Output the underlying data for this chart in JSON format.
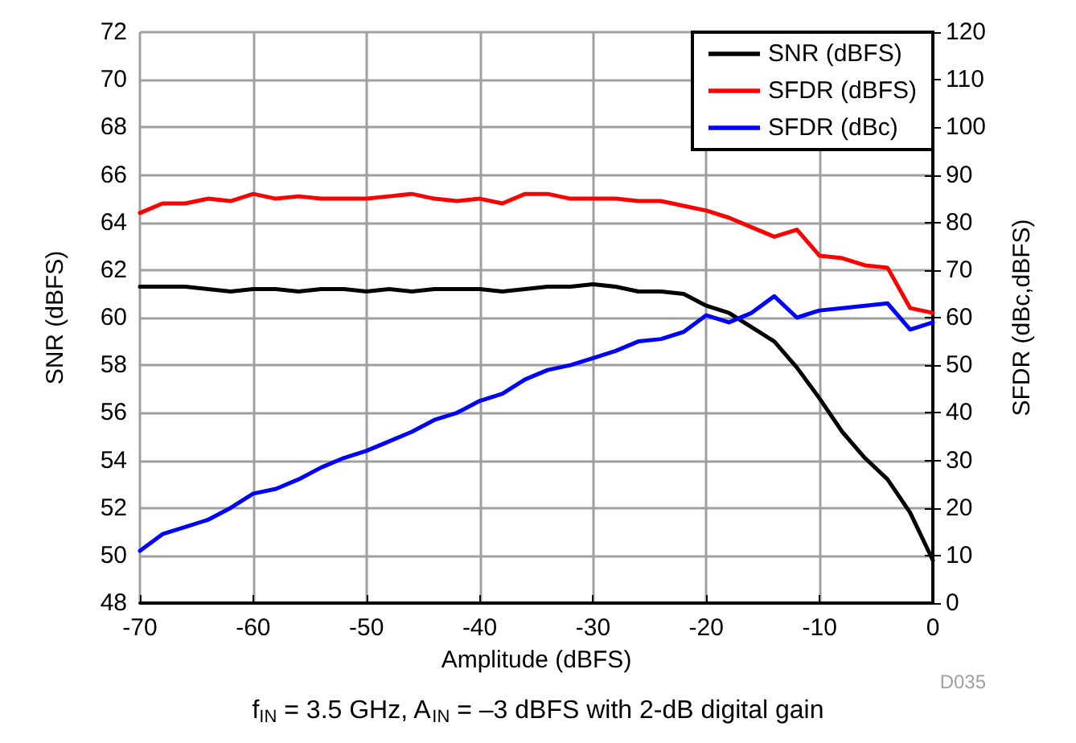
{
  "chart_data": {
    "type": "line",
    "xlabel": "Amplitude (dBFS)",
    "ylabel": "SNR (dBFS)",
    "y2label": "SFDR (dBc,dBFS)",
    "x": [
      -70,
      -68,
      -66,
      -64,
      -62,
      -60,
      -58,
      -56,
      -54,
      -52,
      -50,
      -48,
      -46,
      -44,
      -42,
      -40,
      -38,
      -36,
      -34,
      -32,
      -30,
      -28,
      -26,
      -24,
      -22,
      -20,
      -18,
      -16,
      -14,
      -12,
      -10,
      -8,
      -6,
      -4,
      -2,
      0
    ],
    "series": [
      {
        "name": "SNR (dBFS)",
        "color": "#000000",
        "values": [
          61.3,
          61.3,
          61.3,
          61.2,
          61.1,
          61.2,
          61.2,
          61.1,
          61.2,
          61.2,
          61.1,
          61.2,
          61.1,
          61.2,
          61.2,
          61.2,
          61.1,
          61.2,
          61.3,
          61.3,
          61.4,
          61.3,
          61.1,
          61.1,
          61.0,
          60.5,
          60.2,
          59.6,
          59.0,
          57.9,
          56.6,
          55.2,
          54.1,
          53.2,
          51.8,
          49.8
        ]
      },
      {
        "name": "SFDR (dBFS)",
        "color": "#ff0000",
        "axis": "y2",
        "values": [
          82,
          84,
          84,
          85,
          84.5,
          86,
          85,
          85.5,
          85,
          85,
          85,
          85.5,
          86,
          85,
          84.5,
          85,
          84,
          86,
          86,
          85,
          85,
          85,
          84.5,
          84.5,
          83.5,
          82.5,
          81,
          79,
          77,
          78.5,
          73,
          72.5,
          71,
          70.5,
          62,
          61
        ]
      },
      {
        "name": "SFDR (dBc)",
        "color": "#0000ff",
        "axis": "y2",
        "values": [
          11,
          14.5,
          16,
          17.5,
          20,
          23,
          24,
          26,
          28.5,
          30.5,
          32,
          34,
          36,
          38.5,
          40,
          42.5,
          44,
          47,
          49,
          50,
          51.5,
          53,
          55,
          55.5,
          57,
          60.5,
          59,
          61,
          64.5,
          60,
          61.5,
          62,
          62.5,
          63,
          57.5,
          59
        ]
      }
    ],
    "xlim": [
      -70,
      0
    ],
    "xticks": [
      -70,
      -60,
      -50,
      -40,
      -30,
      -20,
      -10,
      0
    ],
    "ylim": [
      48,
      72
    ],
    "yticks": [
      48,
      50,
      52,
      54,
      56,
      58,
      60,
      62,
      64,
      66,
      68,
      70,
      72
    ],
    "y2lim": [
      0,
      120
    ],
    "y2ticks": [
      0,
      10,
      20,
      30,
      40,
      50,
      60,
      70,
      80,
      90,
      100,
      110,
      120
    ],
    "grid": true,
    "legend": "top right",
    "marker": "none",
    "line_style": "solid",
    "annotations": [
      "D035",
      "f$_{IN}$ = 3.5 GHz, A$_{IN}$ = –3 dBFS with 2-dB digital gain"
    ]
  }
}
